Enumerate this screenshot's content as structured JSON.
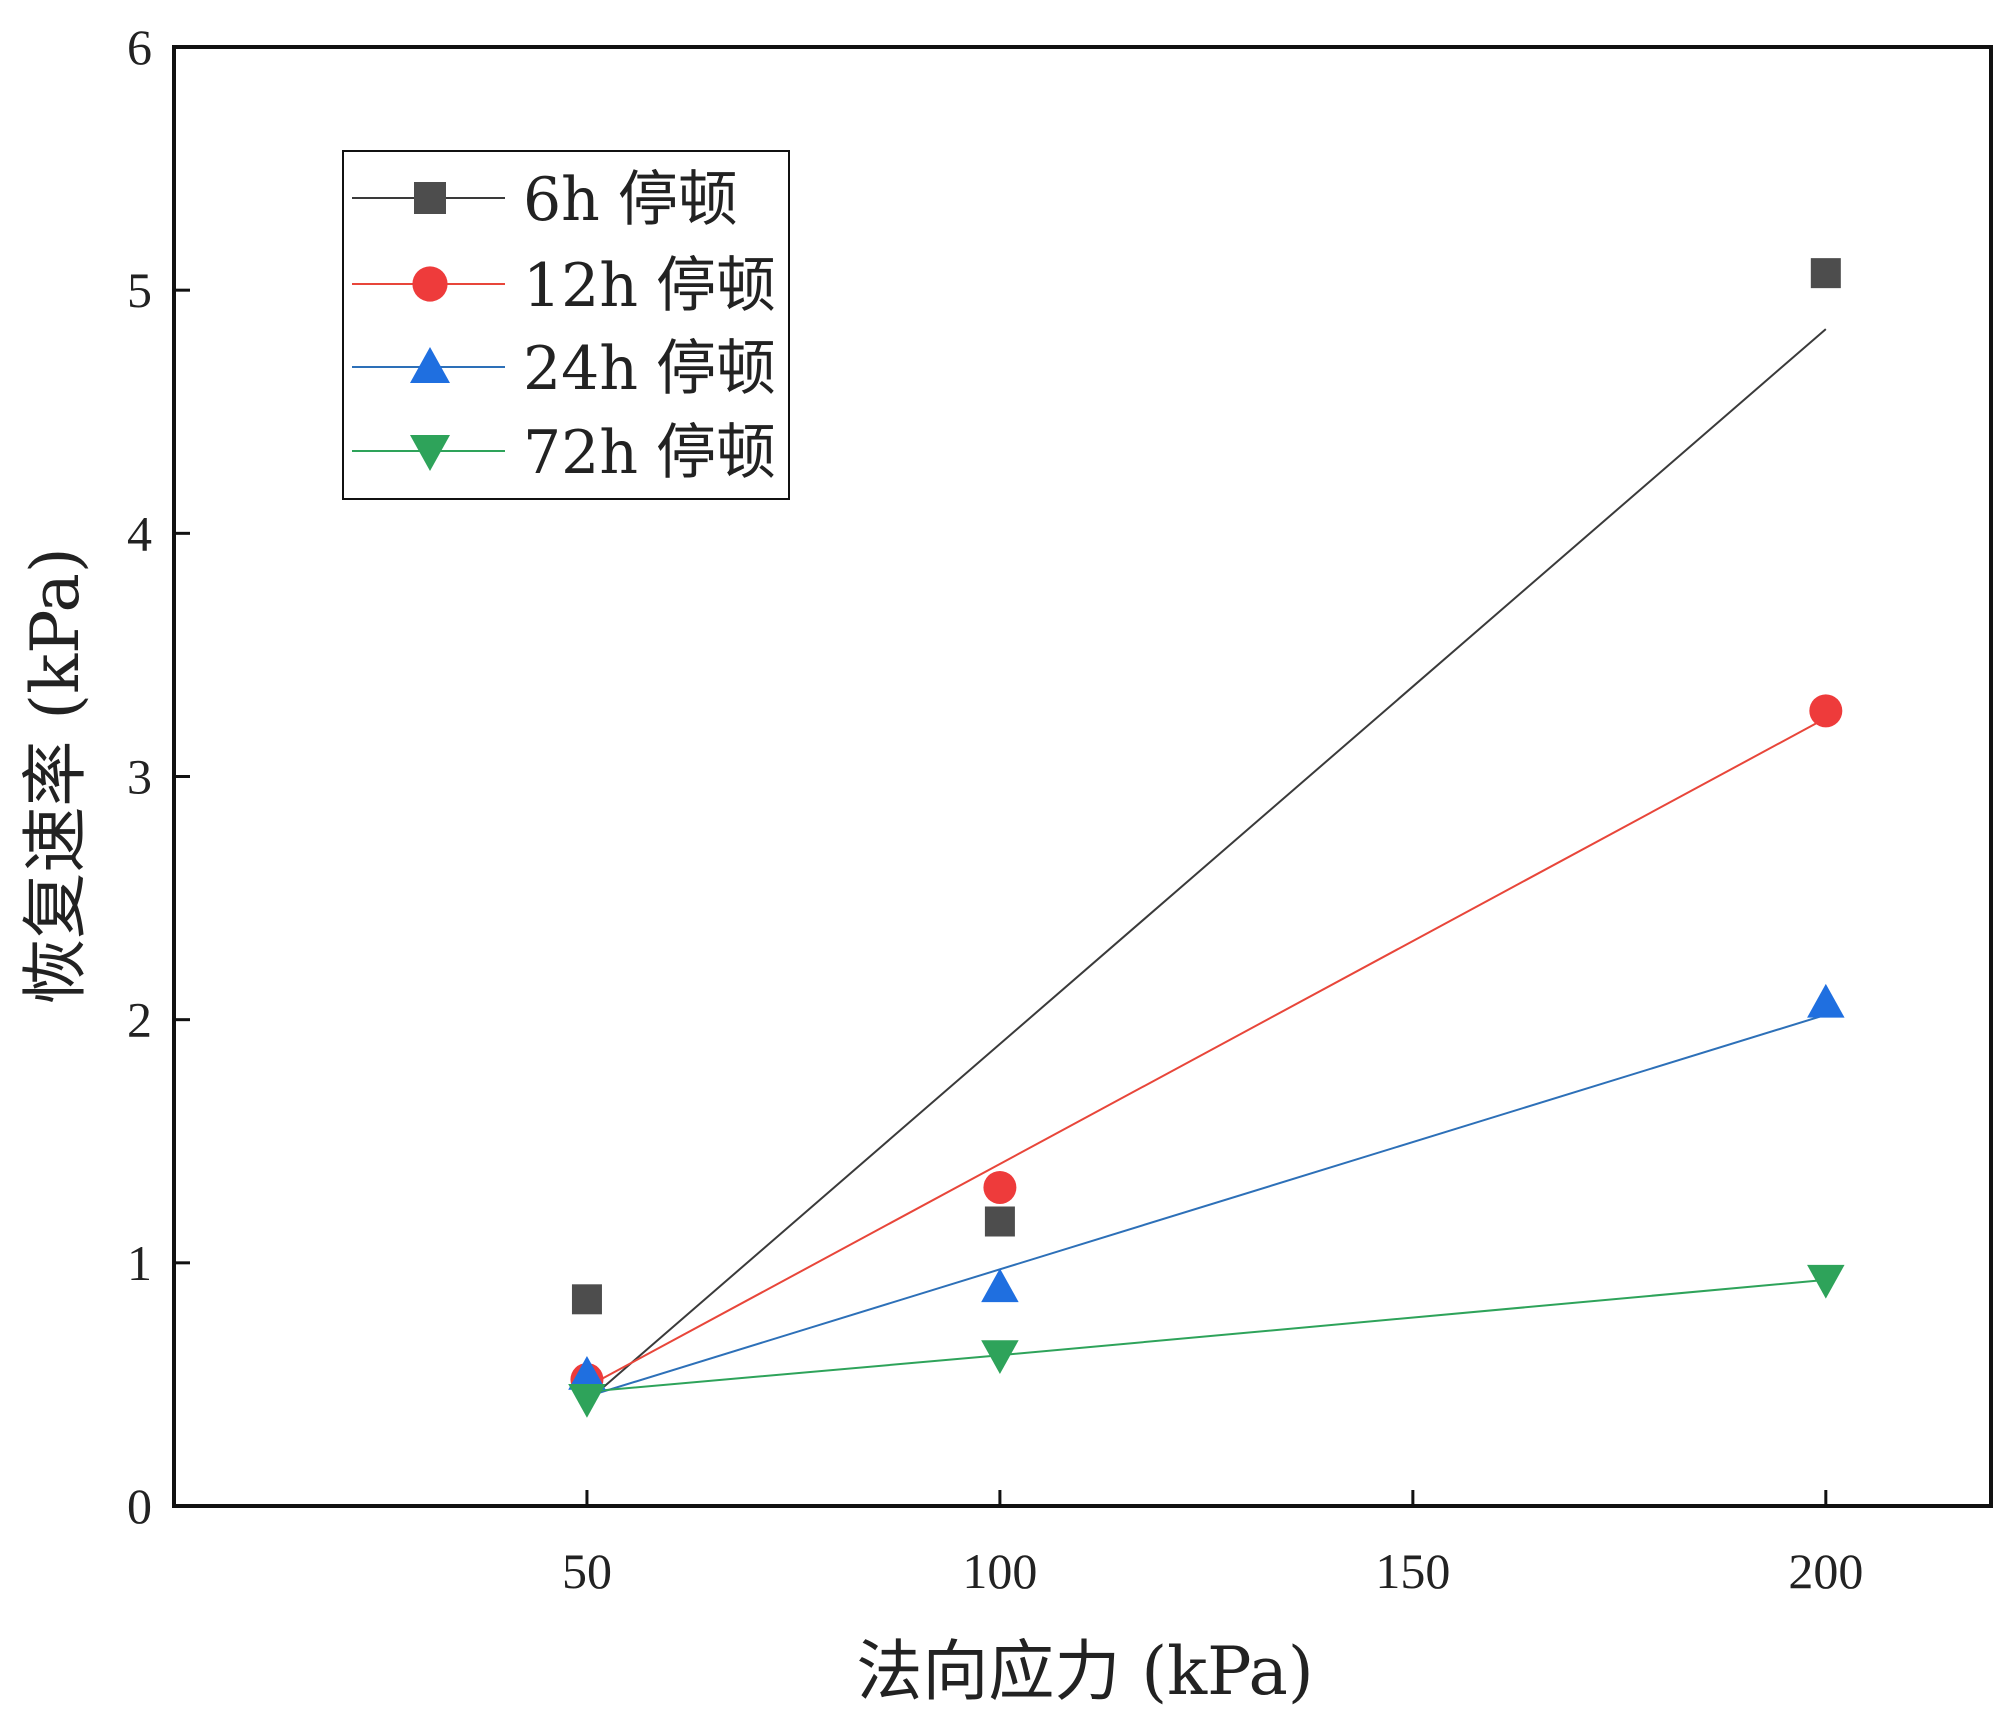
{
  "chart_data": {
    "type": "scatter",
    "title": "",
    "xlabel": "法向应力 (kPa)",
    "ylabel": "恢复速率 (kPa)",
    "xlim": [
      0,
      220
    ],
    "ylim": [
      0,
      6
    ],
    "xticks": [
      50,
      100,
      150,
      200
    ],
    "yticks": [
      0,
      1,
      2,
      3,
      4,
      5,
      6
    ],
    "grid": false,
    "legend_position": "top-left",
    "series": [
      {
        "name": "6h 停顿",
        "label_lines": [
          "6h",
          "停顿"
        ],
        "marker": "square",
        "color": "#4d4d4d",
        "line_color": "#3a3a3a",
        "x": [
          50,
          100,
          200
        ],
        "y": [
          0.85,
          1.17,
          5.07
        ],
        "fit": [
          [
            50,
            0.43
          ],
          [
            200,
            4.84
          ]
        ]
      },
      {
        "name": "12h 停顿",
        "label_lines": [
          "12h",
          "停顿"
        ],
        "marker": "circle",
        "color": "#ee3b3b",
        "line_color": "#e8463a",
        "x": [
          50,
          100,
          200
        ],
        "y": [
          0.52,
          1.31,
          3.27
        ],
        "fit": [
          [
            50,
            0.49
          ],
          [
            200,
            3.24
          ]
        ]
      },
      {
        "name": "24h 停顿",
        "label_lines": [
          "24h",
          "停顿"
        ],
        "marker": "triangle-up",
        "color": "#1f6fe0",
        "line_color": "#2d70b8",
        "x": [
          50,
          100,
          200
        ],
        "y": [
          0.54,
          0.9,
          2.07
        ],
        "fit": [
          [
            50,
            0.45
          ],
          [
            200,
            2.02
          ]
        ]
      },
      {
        "name": "72h 停顿",
        "label_lines": [
          "72h",
          "停顿"
        ],
        "marker": "triangle-down",
        "color": "#2ea35a",
        "line_color": "#2ea35a",
        "x": [
          50,
          100,
          200
        ],
        "y": [
          0.44,
          0.62,
          0.93
        ],
        "fit": [
          [
            50,
            0.47
          ],
          [
            100,
            0.62
          ],
          [
            200,
            0.93
          ]
        ]
      }
    ]
  }
}
